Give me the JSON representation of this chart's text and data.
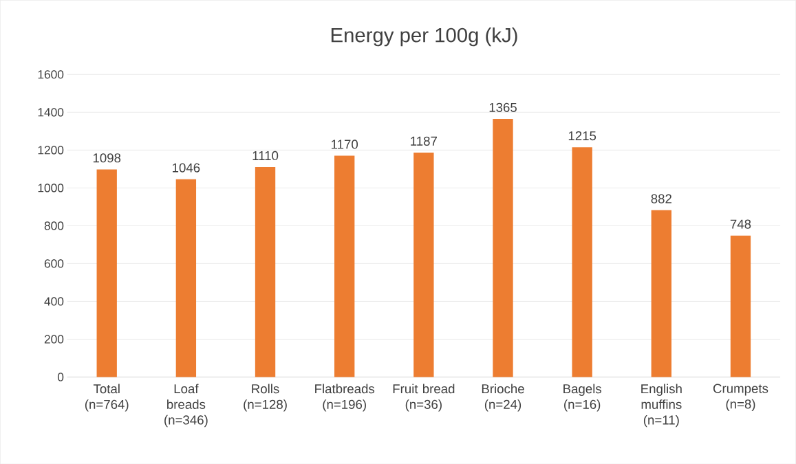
{
  "chart_data": {
    "type": "bar",
    "title": "Energy per 100g (kJ)",
    "categories": [
      "Total (n=764)",
      "Loaf breads (n=346)",
      "Rolls (n=128)",
      "Flatbreads (n=196)",
      "Fruit bread (n=36)",
      "Brioche (n=24)",
      "Bagels (n=16)",
      "English muffins (n=11)",
      "Crumpets (n=8)"
    ],
    "values": [
      1098,
      1046,
      1110,
      1170,
      1187,
      1365,
      1215,
      882,
      748
    ],
    "color": "#ed7d31",
    "ylim": [
      0,
      1600
    ],
    "yticks": [
      0,
      200,
      400,
      600,
      800,
      1000,
      1200,
      1400,
      1600
    ],
    "grid": "y",
    "data_labels": true
  }
}
